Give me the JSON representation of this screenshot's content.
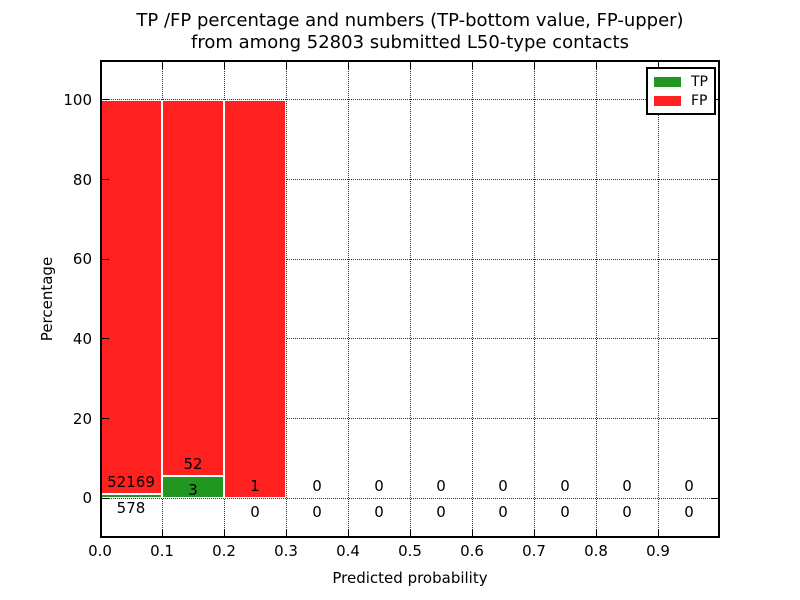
{
  "title": {
    "line1": "TP /FP percentage and numbers (TP-bottom value, FP-upper)",
    "line2": "from among 52803 submitted L50-type contacts"
  },
  "chart_data": {
    "type": "bar",
    "stacked": true,
    "title": "TP /FP percentage and numbers (TP-bottom value, FP-upper) from among 52803 submitted L50-type contacts",
    "total_submitted": 52803,
    "xlabel": "Predicted probability",
    "ylabel": "Percentage",
    "xlim": [
      0.0,
      1.0
    ],
    "ylim": [
      -10,
      110
    ],
    "grid": "dotted",
    "legend_position": "upper right",
    "colors": {
      "tp": "#219621",
      "fp": "#ff2020",
      "bar_edge": "#ffffff"
    },
    "legend": [
      {
        "label": "TP",
        "color": "#219621"
      },
      {
        "label": "FP",
        "color": "#ff2020"
      }
    ],
    "xticks": [
      {
        "v": 0.0,
        "label": "0.0"
      },
      {
        "v": 0.1,
        "label": "0.1"
      },
      {
        "v": 0.2,
        "label": "0.2"
      },
      {
        "v": 0.3,
        "label": "0.3"
      },
      {
        "v": 0.4,
        "label": "0.4"
      },
      {
        "v": 0.5,
        "label": "0.5"
      },
      {
        "v": 0.6,
        "label": "0.6"
      },
      {
        "v": 0.7,
        "label": "0.7"
      },
      {
        "v": 0.8,
        "label": "0.8"
      },
      {
        "v": 0.9,
        "label": "0.9"
      }
    ],
    "yticks": [
      {
        "v": 0,
        "label": "0"
      },
      {
        "v": 20,
        "label": "20"
      },
      {
        "v": 40,
        "label": "40"
      },
      {
        "v": 60,
        "label": "60"
      },
      {
        "v": 80,
        "label": "80"
      },
      {
        "v": 100,
        "label": "100"
      }
    ],
    "bins": [
      {
        "range": [
          0.0,
          0.1
        ],
        "tp_count": 578,
        "fp_count": 52169,
        "tp_pct": 1.1,
        "fp_pct": 98.9
      },
      {
        "range": [
          0.1,
          0.2
        ],
        "tp_count": 3,
        "fp_count": 52,
        "tp_pct": 5.45,
        "fp_pct": 94.55
      },
      {
        "range": [
          0.2,
          0.3
        ],
        "tp_count": 0,
        "fp_count": 1,
        "tp_pct": 0,
        "fp_pct": 100
      },
      {
        "range": [
          0.3,
          0.4
        ],
        "tp_count": 0,
        "fp_count": 0,
        "tp_pct": 0,
        "fp_pct": 0
      },
      {
        "range": [
          0.4,
          0.5
        ],
        "tp_count": 0,
        "fp_count": 0,
        "tp_pct": 0,
        "fp_pct": 0
      },
      {
        "range": [
          0.5,
          0.6
        ],
        "tp_count": 0,
        "fp_count": 0,
        "tp_pct": 0,
        "fp_pct": 0
      },
      {
        "range": [
          0.6,
          0.7
        ],
        "tp_count": 0,
        "fp_count": 0,
        "tp_pct": 0,
        "fp_pct": 0
      },
      {
        "range": [
          0.7,
          0.8
        ],
        "tp_count": 0,
        "fp_count": 0,
        "tp_pct": 0,
        "fp_pct": 0
      },
      {
        "range": [
          0.8,
          0.9
        ],
        "tp_count": 0,
        "fp_count": 0,
        "tp_pct": 0,
        "fp_pct": 0
      },
      {
        "range": [
          0.9,
          1.0
        ],
        "tp_count": 0,
        "fp_count": 0,
        "tp_pct": 0,
        "fp_pct": 0
      }
    ]
  }
}
